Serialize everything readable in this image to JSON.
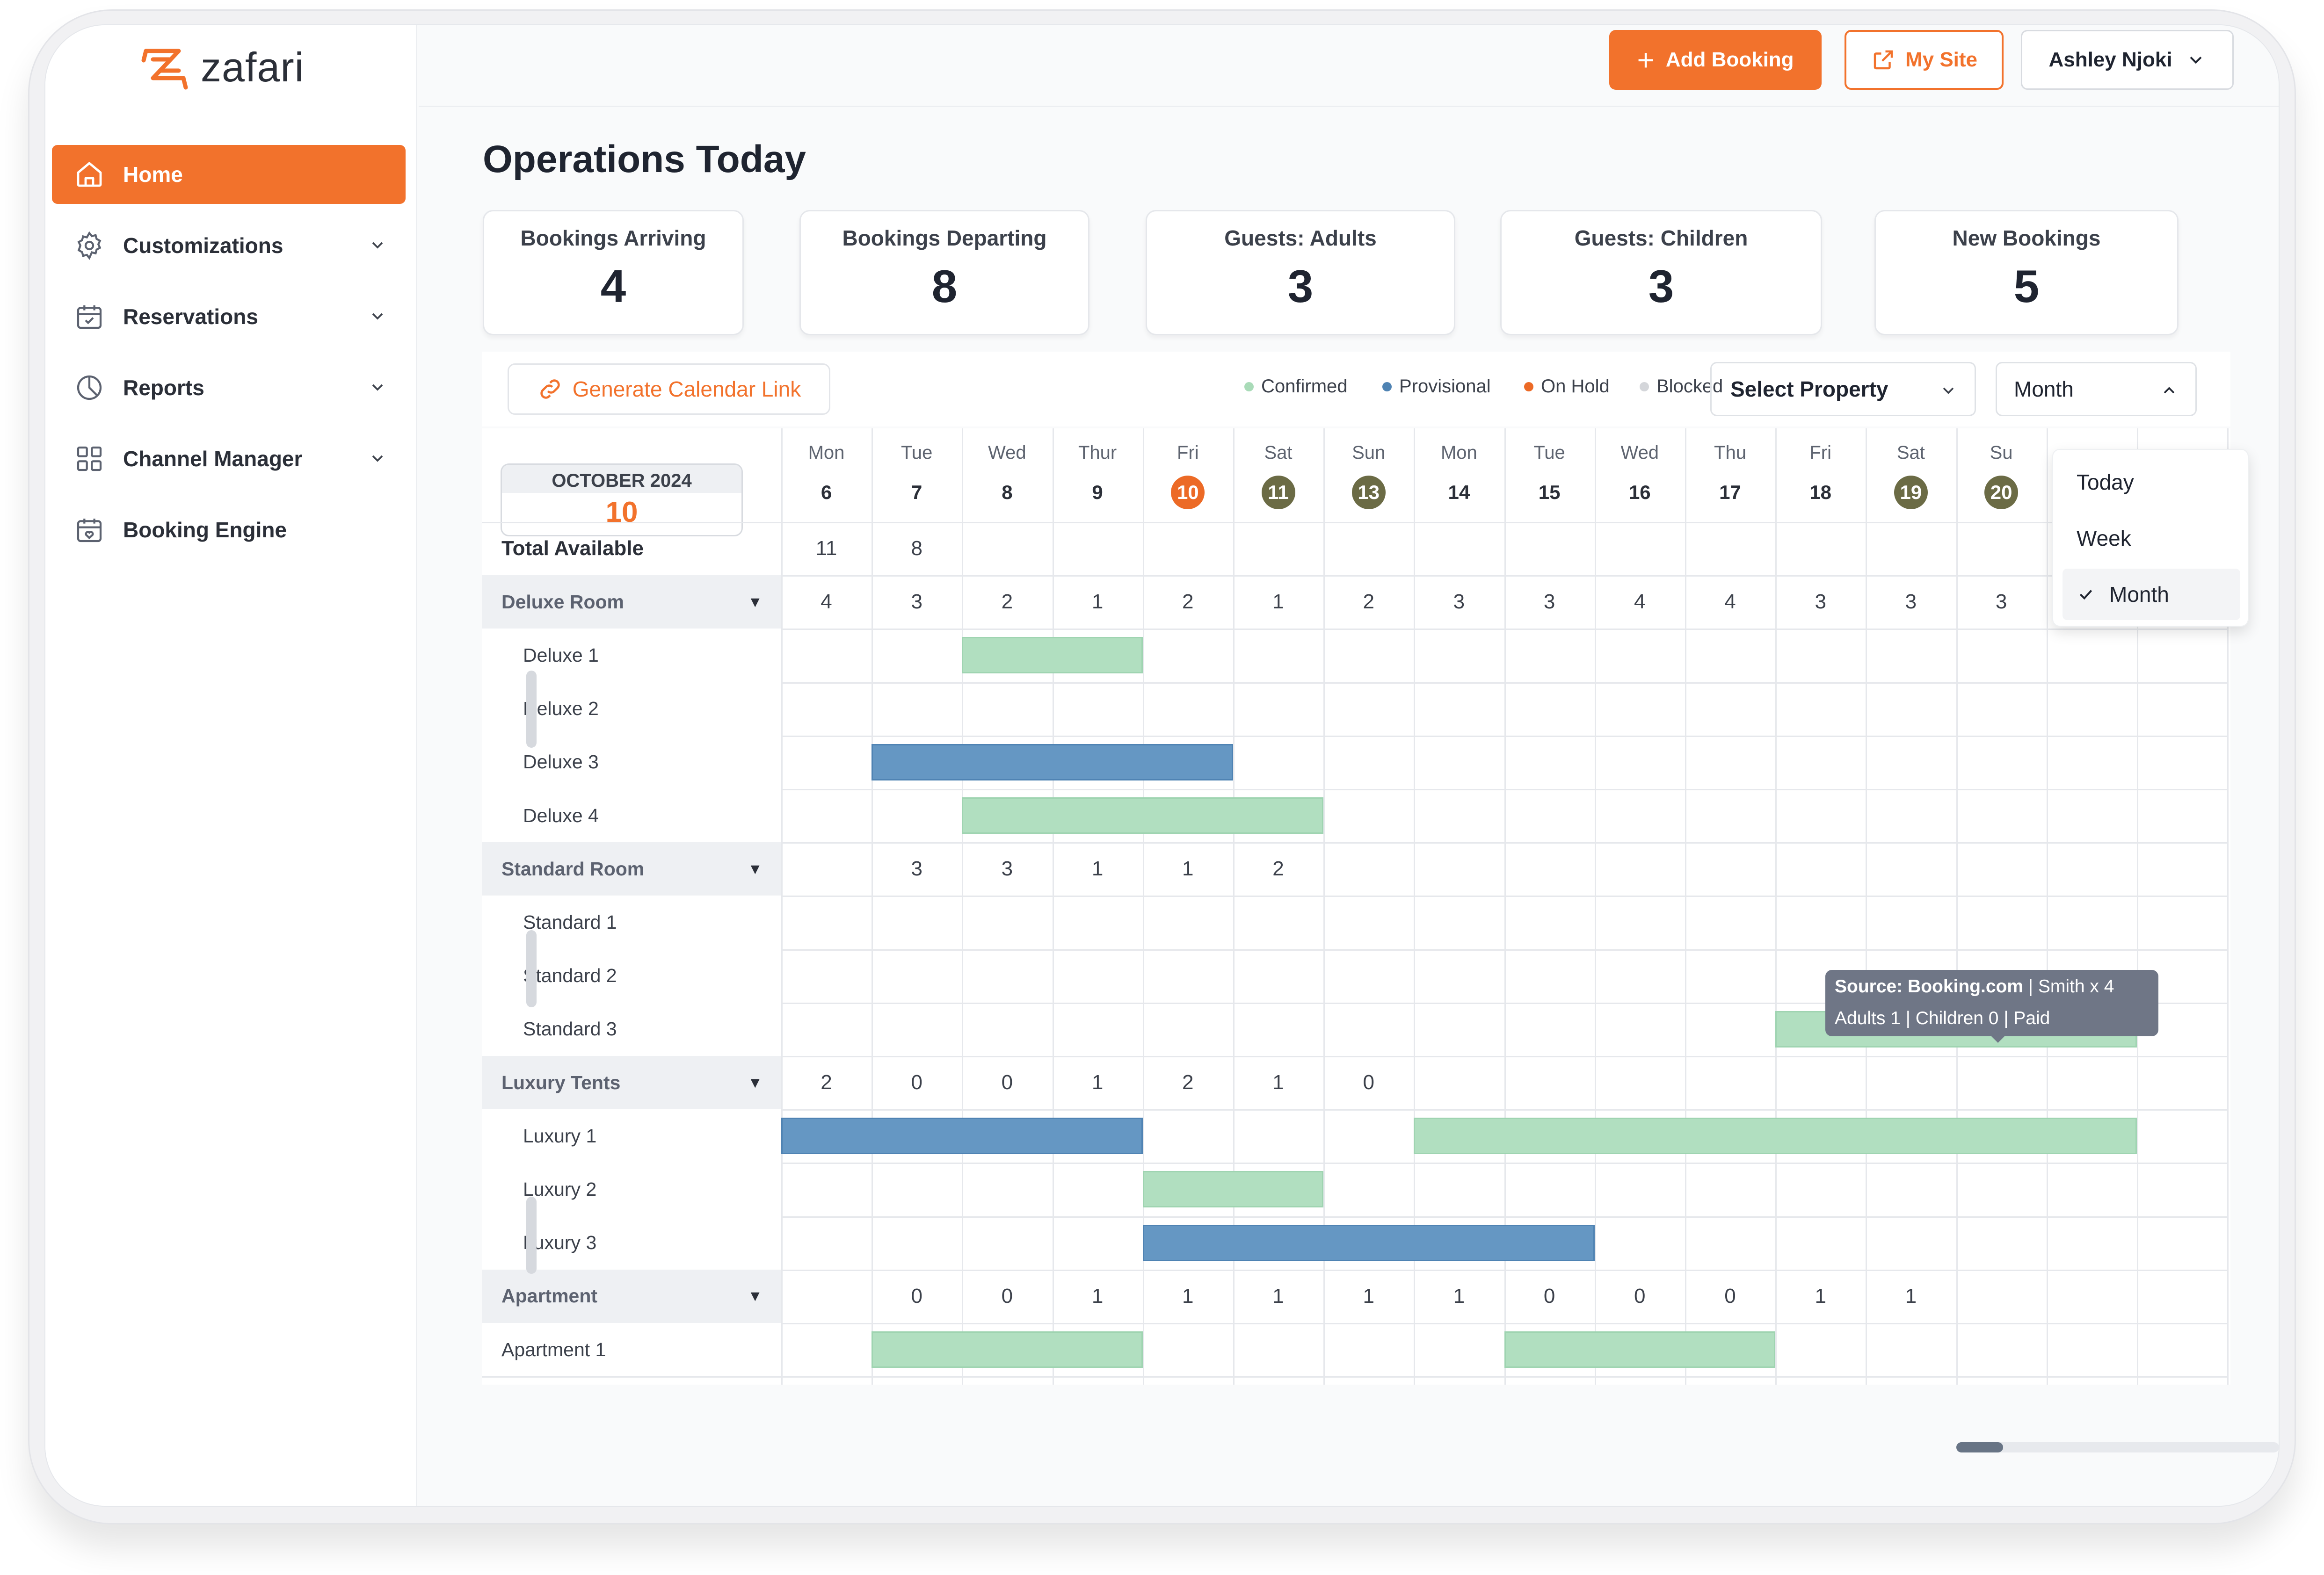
{
  "app": {
    "name": "zafari",
    "brand_color": "#f2722c"
  },
  "sidebar": {
    "items": [
      {
        "label": "Home",
        "icon": "home-icon"
      },
      {
        "label": "Customizations",
        "icon": "gear-icon"
      },
      {
        "label": "Reservations",
        "icon": "calendar-check-icon"
      },
      {
        "label": "Reports",
        "icon": "pie-chart-icon"
      },
      {
        "label": "Channel Manager",
        "icon": "grid-icon"
      },
      {
        "label": "Booking Engine",
        "icon": "calendar-heart-icon"
      }
    ]
  },
  "topbar": {
    "add_booking": "Add Booking",
    "my_site": "My Site",
    "user": "Ashley Njoki"
  },
  "page": {
    "title": "Operations Today"
  },
  "stats": [
    {
      "label": "Bookings Arriving",
      "value": "4"
    },
    {
      "label": "Bookings Departing",
      "value": "8"
    },
    {
      "label": "Guests: Adults",
      "value": "3"
    },
    {
      "label": "Guests: Children",
      "value": "3"
    },
    {
      "label": "New Bookings",
      "value": "5"
    }
  ],
  "calendar": {
    "generate_link": "Generate Calendar Link",
    "legend": [
      {
        "label": "Confirmed",
        "color": "#a9dbb8"
      },
      {
        "label": "Provisional",
        "color": "#4f83b3"
      },
      {
        "label": "On Hold",
        "color": "#ec6a26"
      },
      {
        "label": "Blocked",
        "color": "#d4d6da"
      }
    ],
    "property_select": "Select Property",
    "view_select": "Month",
    "view_options": [
      "Today",
      "Week",
      "Month"
    ],
    "month_label": "OCTOBER 2024",
    "current_day": "10",
    "days": [
      {
        "name": "Mon",
        "num": "6"
      },
      {
        "name": "Tue",
        "num": "7"
      },
      {
        "name": "Wed",
        "num": "8"
      },
      {
        "name": "Thur",
        "num": "9"
      },
      {
        "name": "Fri",
        "num": "10"
      },
      {
        "name": "Sat",
        "num": "11"
      },
      {
        "name": "Sun",
        "num": "13"
      },
      {
        "name": "Mon",
        "num": "14"
      },
      {
        "name": "Tue",
        "num": "15"
      },
      {
        "name": "Wed",
        "num": "16"
      },
      {
        "name": "Thu",
        "num": "17"
      },
      {
        "name": "Fri",
        "num": "18"
      },
      {
        "name": "Sat",
        "num": "19"
      },
      {
        "name": "Su",
        "num": "20"
      }
    ],
    "total_available": {
      "label": "Total Available",
      "values": [
        "11",
        "8"
      ]
    },
    "groups": [
      {
        "name": "Deluxe Room",
        "values": [
          "4",
          "3",
          "2",
          "1",
          "2",
          "1",
          "2",
          "3",
          "3",
          "4",
          "4",
          "3",
          "3",
          "3"
        ],
        "rooms": [
          "Deluxe 1",
          "Deluxe 2",
          "Deluxe 3",
          "Deluxe 4"
        ]
      },
      {
        "name": "Standard Room",
        "values": [
          "",
          "3",
          "3",
          "1",
          "1",
          "2"
        ],
        "rooms": [
          "Standard 1",
          "Standard 2",
          "Standard 3"
        ]
      },
      {
        "name": "Luxury Tents",
        "values": [
          "2",
          "0",
          "0",
          "1",
          "2",
          "1",
          "0"
        ],
        "rooms": [
          "Luxury 1",
          "Luxury 2",
          "Luxury 3"
        ]
      },
      {
        "name": "Apartment",
        "values": [
          "",
          "0",
          "0",
          "1",
          "1",
          "1",
          "1",
          "1",
          "0",
          "0",
          "0",
          "1",
          "1"
        ],
        "rooms": [
          "Apartment 1"
        ]
      }
    ],
    "tooltip": {
      "source": "Source: Booking.com",
      "line1_rest": " | Smith x 4",
      "line2": "Adults 1 | Children 0 | Paid"
    }
  }
}
